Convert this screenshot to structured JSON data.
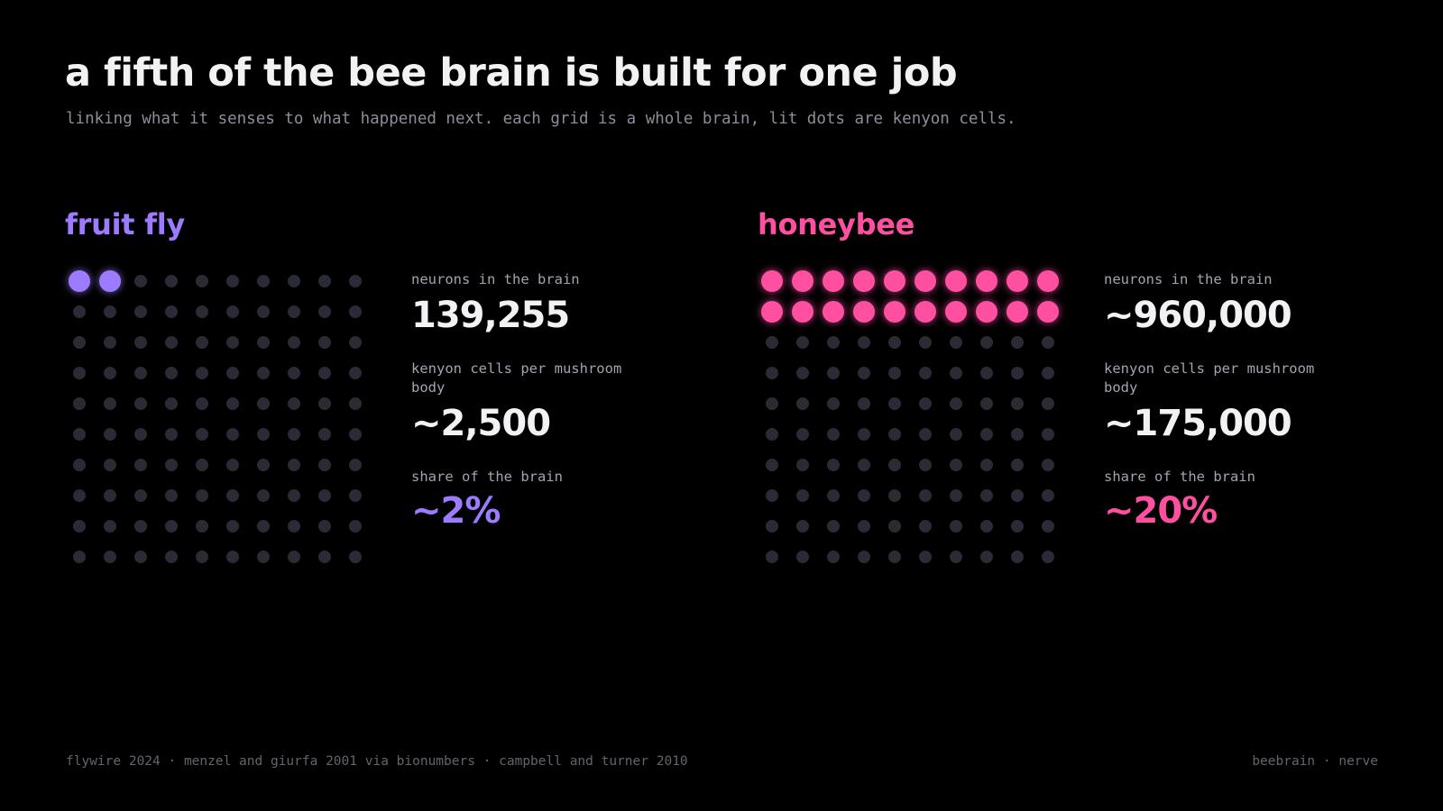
{
  "title": "a fifth of the bee brain is built for one job",
  "subtitle": "linking what it senses to what happened next. each grid is a whole brain, lit dots are kenyon cells.",
  "colors": {
    "background": "#000000",
    "fruit_fly_accent": "#9d7bff",
    "honeybee_accent": "#ff4fa0",
    "unlit_dot": "#2b2b35",
    "label": "#a3a3b1",
    "value": "#f2f2f5"
  },
  "panels": [
    {
      "name": "fruit fly",
      "stats": [
        {
          "label": "neurons in the brain",
          "value": "139,255"
        },
        {
          "label": "kenyon cells per mushroom body",
          "value": "~2,500"
        },
        {
          "label": "share of the brain",
          "value": "~2%"
        }
      ]
    },
    {
      "name": "honeybee",
      "stats": [
        {
          "label": "neurons in the brain",
          "value": "~960,000"
        },
        {
          "label": "kenyon cells per mushroom body",
          "value": "~175,000"
        },
        {
          "label": "share of the brain",
          "value": "~20%"
        }
      ]
    }
  ],
  "chart_data": [
    {
      "type": "waffle",
      "title": "fruit fly",
      "rows": 10,
      "columns": 10,
      "total_dots": 100,
      "lit_dots": 2,
      "lit_share_percent": 2,
      "lit_color": "#9d7bff",
      "unlit_color": "#2b2b35"
    },
    {
      "type": "waffle",
      "title": "honeybee",
      "rows": 10,
      "columns": 10,
      "total_dots": 100,
      "lit_dots": 20,
      "lit_share_percent": 20,
      "lit_color": "#ff4fa0",
      "unlit_color": "#2b2b35"
    }
  ],
  "footer": {
    "sources": "flywire 2024 · menzel and giurfa 2001 via bionumbers · campbell and turner 2010",
    "credit": "beebrain · nerve"
  }
}
